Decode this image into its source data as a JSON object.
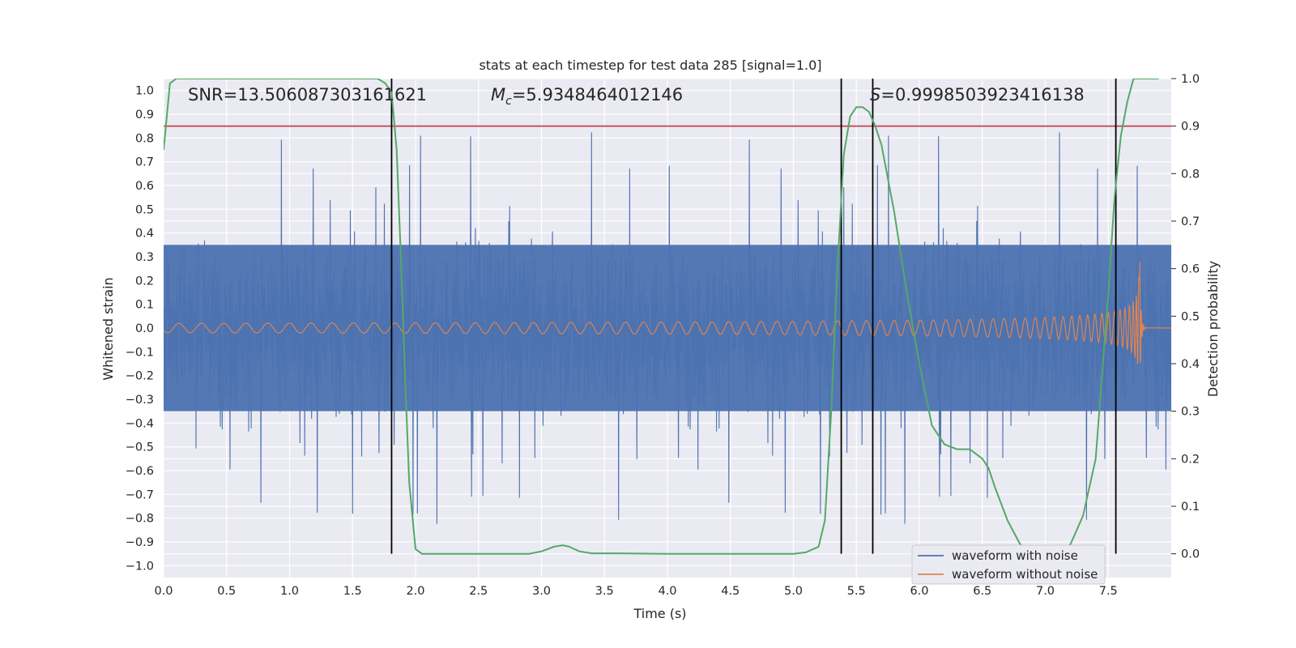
{
  "chart_data": {
    "type": "line",
    "title": "stats at each timestep for test data 285 [signal=1.0]",
    "xlabel": "Time (s)",
    "ylabel_left": "Whitened strain",
    "ylabel_right": "Detection probability",
    "xlim": [
      0,
      8
    ],
    "ylim_left": [
      -1.05,
      1.05
    ],
    "ylim_right": [
      -0.05,
      1.0
    ],
    "x_ticks": [
      "0.0",
      "0.5",
      "1.0",
      "1.5",
      "2.0",
      "2.5",
      "3.0",
      "3.5",
      "4.0",
      "4.5",
      "5.0",
      "5.5",
      "6.0",
      "6.5",
      "7.0",
      "7.5"
    ],
    "y_ticks_left": [
      "1.0",
      "0.9",
      "0.8",
      "0.7",
      "0.6",
      "0.5",
      "0.4",
      "0.3",
      "0.2",
      "0.1",
      "0.0",
      "−0.1",
      "−0.2",
      "−0.3",
      "−0.4",
      "−0.5",
      "−0.6",
      "−0.7",
      "−0.8",
      "−0.9",
      "−1.0"
    ],
    "y_ticks_right": [
      "1.0",
      "0.9",
      "0.8",
      "0.7",
      "0.6",
      "0.5",
      "0.4",
      "0.3",
      "0.2",
      "0.1",
      "0.0"
    ],
    "annotations": {
      "snr": "SNR=13.506087303161621",
      "mc_symbol": "M",
      "mc_sub": "c",
      "mc_value": "=5.9348464012146",
      "s_symbol": "S",
      "s_value": "=0.9998503923416138"
    },
    "threshold_right": 0.9,
    "vertical_lines_x": [
      1.81,
      5.38,
      5.63,
      7.56
    ],
    "series": [
      {
        "name": "waveform with noise",
        "color": "#4c72b0",
        "axis": "left",
        "noise_envelope": {
          "upper_peak": 1.0,
          "lower_peak": -0.95,
          "typical_range": [
            -0.35,
            0.35
          ]
        }
      },
      {
        "name": "waveform without noise",
        "color": "#dd8452",
        "axis": "left",
        "chirp": {
          "start_amplitude": 0.02,
          "end_amplitude": 0.4,
          "merger_time": 7.75,
          "end_time": 7.8
        }
      },
      {
        "color": "#55a868",
        "axis": "right",
        "x": [
          0.0,
          0.05,
          0.1,
          0.2,
          0.4,
          0.8,
          1.2,
          1.6,
          1.7,
          1.76,
          1.81,
          1.85,
          1.88,
          1.92,
          1.95,
          2.0,
          2.05,
          2.2,
          2.5,
          2.9,
          3.0,
          3.1,
          3.17,
          3.22,
          3.3,
          3.4,
          3.6,
          4.0,
          4.5,
          5.0,
          5.1,
          5.2,
          5.25,
          5.3,
          5.35,
          5.4,
          5.45,
          5.5,
          5.55,
          5.6,
          5.65,
          5.7,
          5.8,
          5.9,
          6.0,
          6.1,
          6.2,
          6.3,
          6.4,
          6.5,
          6.55,
          6.6,
          6.7,
          6.8,
          6.9,
          7.0,
          7.1,
          7.2,
          7.3,
          7.4,
          7.5,
          7.55,
          7.6,
          7.65,
          7.7,
          7.8,
          7.9
        ],
        "values": [
          0.85,
          0.99,
          1.0,
          1.0,
          1.0,
          1.0,
          1.0,
          1.0,
          1.0,
          0.99,
          0.97,
          0.85,
          0.65,
          0.35,
          0.15,
          0.01,
          0.0,
          0.0,
          0.0,
          0.0,
          0.005,
          0.015,
          0.018,
          0.015,
          0.005,
          0.001,
          0.001,
          0.0,
          0.0,
          0.0,
          0.003,
          0.015,
          0.07,
          0.3,
          0.6,
          0.84,
          0.92,
          0.94,
          0.94,
          0.93,
          0.9,
          0.86,
          0.72,
          0.55,
          0.4,
          0.27,
          0.23,
          0.22,
          0.22,
          0.2,
          0.18,
          0.14,
          0.07,
          0.02,
          0.0,
          0.0,
          0.0,
          0.02,
          0.08,
          0.2,
          0.55,
          0.75,
          0.88,
          0.95,
          1.0,
          1.0,
          1.0
        ]
      }
    ],
    "colors": {
      "threshold": "#c44e52",
      "vline": "#000000",
      "grid": "#ffffff",
      "background": "#eaeaf2"
    },
    "legend": {
      "placement": "lower-right"
    },
    "grid": true
  }
}
